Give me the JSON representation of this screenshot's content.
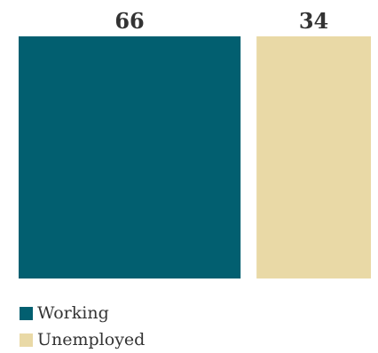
{
  "chart_data": {
    "type": "bar",
    "subtype": "proportional-stacked-horizontal",
    "categories": [
      "Working",
      "Unemployed"
    ],
    "values": [
      66,
      34
    ],
    "colors": [
      "#025f70",
      "#e9d9a6"
    ],
    "legend_position": "bottom-left",
    "grid": false
  }
}
